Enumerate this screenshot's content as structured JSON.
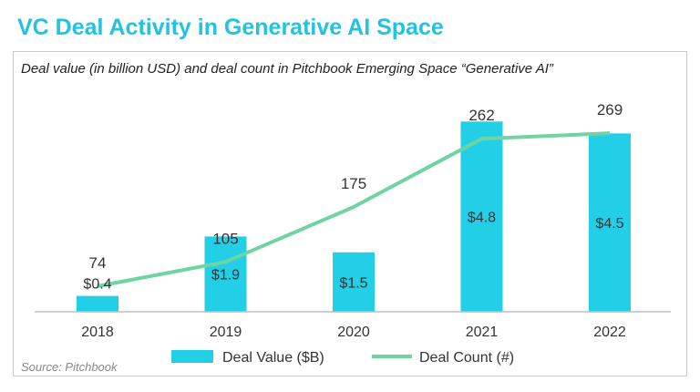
{
  "title": "VC Deal Activity in Generative AI Space",
  "subtitle": "Deal value (in billion USD) and deal count in Pitchbook Emerging Space “Generative AI”",
  "source": "Source: Pitchbook",
  "colors": {
    "bar": "#22cfe6",
    "line": "#6fd3a3",
    "title": "#22c3e0"
  },
  "chart_data": {
    "type": "bar",
    "categories": [
      "2018",
      "2019",
      "2020",
      "2021",
      "2022"
    ],
    "series": [
      {
        "name": "Deal Value ($B)",
        "type": "bar",
        "values": [
          0.4,
          1.9,
          1.5,
          4.8,
          4.5
        ],
        "labels": [
          "$0.4",
          "$1.9",
          "$1.5",
          "$4.8",
          "$4.5"
        ]
      },
      {
        "name": "Deal Count (#)",
        "type": "line",
        "values": [
          74,
          105,
          175,
          262,
          269
        ],
        "labels": [
          "74",
          "105",
          "175",
          "262",
          "269"
        ]
      }
    ],
    "legend": "bottom",
    "grid": false
  }
}
